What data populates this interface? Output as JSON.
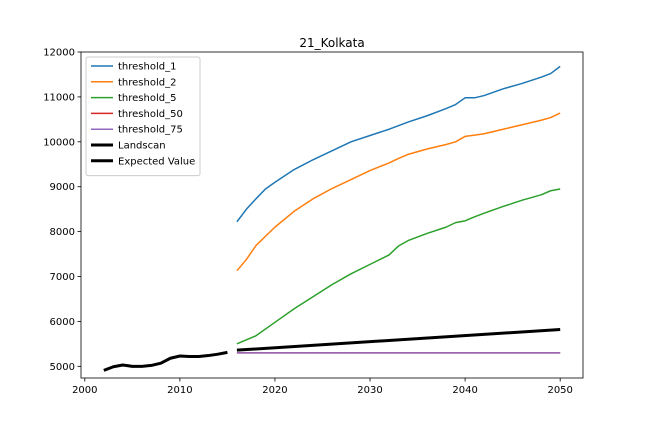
{
  "chart_data": {
    "type": "line",
    "title": "21_Kolkata",
    "xlabel": "",
    "ylabel": "",
    "xlim": [
      1999.6,
      2052.4
    ],
    "ylim": [
      4740,
      12000
    ],
    "xticks": [
      2000,
      2010,
      2020,
      2030,
      2040,
      2050
    ],
    "yticks": [
      5000,
      6000,
      7000,
      8000,
      9000,
      10000,
      11000,
      12000
    ],
    "grid": false,
    "legend_position": "upper-left",
    "series": [
      {
        "name": "threshold_1",
        "color": "#1f77b4",
        "x": [
          2016,
          2017,
          2018,
          2019,
          2020,
          2022,
          2024,
          2026,
          2028,
          2030,
          2032,
          2034,
          2036,
          2038,
          2039,
          2040,
          2041,
          2042,
          2044,
          2046,
          2048,
          2049,
          2050
        ],
        "y": [
          8220,
          8500,
          8730,
          8950,
          9100,
          9380,
          9600,
          9800,
          10000,
          10140,
          10280,
          10440,
          10580,
          10740,
          10830,
          10980,
          10980,
          11030,
          11180,
          11300,
          11440,
          11520,
          11680
        ]
      },
      {
        "name": "threshold_2",
        "color": "#ff7f0e",
        "x": [
          2016,
          2017,
          2018,
          2020,
          2022,
          2024,
          2026,
          2028,
          2030,
          2032,
          2033,
          2034,
          2036,
          2038,
          2039,
          2040,
          2041,
          2042,
          2044,
          2046,
          2048,
          2049,
          2050
        ],
        "y": [
          7130,
          7380,
          7690,
          8100,
          8450,
          8730,
          8960,
          9160,
          9360,
          9530,
          9630,
          9720,
          9840,
          9940,
          10000,
          10120,
          10150,
          10180,
          10280,
          10380,
          10480,
          10540,
          10640
        ]
      },
      {
        "name": "threshold_5",
        "color": "#2ca02c",
        "x": [
          2016,
          2018,
          2020,
          2022,
          2024,
          2026,
          2028,
          2030,
          2032,
          2033,
          2034,
          2036,
          2038,
          2039,
          2040,
          2041,
          2042,
          2044,
          2046,
          2048,
          2049,
          2050
        ],
        "y": [
          5500,
          5680,
          5980,
          6280,
          6550,
          6820,
          7060,
          7270,
          7480,
          7680,
          7800,
          7960,
          8100,
          8200,
          8240,
          8330,
          8410,
          8560,
          8700,
          8820,
          8910,
          8950
        ]
      },
      {
        "name": "threshold_50",
        "color": "#d62728",
        "x": [
          2016,
          2050
        ],
        "y": [
          5300,
          5300
        ]
      },
      {
        "name": "threshold_75",
        "color": "#9467bd",
        "x": [
          2016,
          2050
        ],
        "y": [
          5300,
          5300
        ]
      },
      {
        "name": "Landscan",
        "color": "#000000",
        "x": [
          2002,
          2003,
          2004,
          2005,
          2006,
          2007,
          2008,
          2009,
          2010,
          2011,
          2012,
          2013,
          2014,
          2015
        ],
        "y": [
          4910,
          4990,
          5030,
          5000,
          5000,
          5020,
          5070,
          5180,
          5230,
          5220,
          5220,
          5240,
          5270,
          5310
        ]
      },
      {
        "name": "Expected Value",
        "color": "#000000",
        "x": [
          2016,
          2050
        ],
        "y": [
          5360,
          5820
        ]
      }
    ]
  }
}
